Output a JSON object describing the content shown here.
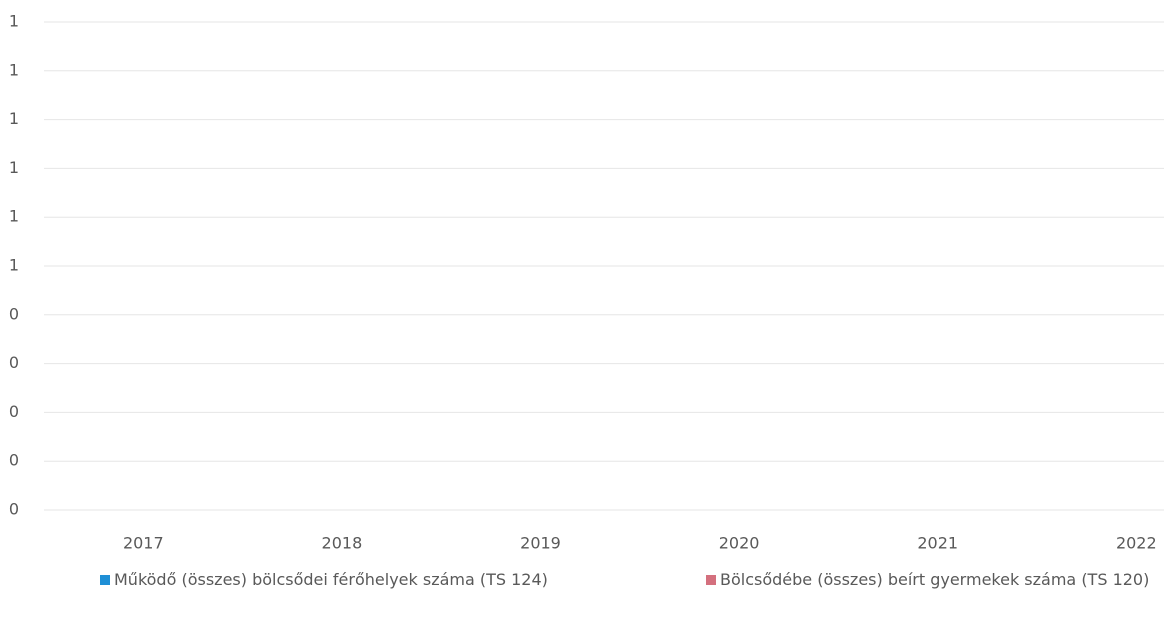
{
  "chart_data": {
    "type": "bar",
    "categories": [
      "2017",
      "2018",
      "2019",
      "2020",
      "2021",
      "2022"
    ],
    "series": [
      {
        "name": "Működő (összes) bölcsődei férőhelyek száma (TS 124)",
        "color": "#1f8fd6",
        "values": [
          0,
          0,
          0,
          0,
          0,
          0
        ]
      },
      {
        "name": "Bölcsődébe (összes) beírt gyermekek száma (TS 120)",
        "color": "#d4707e",
        "values": [
          0,
          0,
          0,
          0,
          0,
          0
        ]
      }
    ],
    "ylim": [
      0,
      1
    ],
    "yticks": [
      0,
      {
        "value": 0.1,
        "label": "0"
      },
      {
        "value": 0.2,
        "label": "0"
      },
      {
        "value": 0.3,
        "label": "0"
      },
      {
        "value": 0.4,
        "label": "0"
      },
      {
        "value": 0.5,
        "label": "1"
      },
      {
        "value": 0.6,
        "label": "1"
      },
      {
        "value": 0.7,
        "label": "1"
      },
      {
        "value": 0.8,
        "label": "1"
      },
      {
        "value": 0.9,
        "label": "1"
      },
      1
    ],
    "grid": true,
    "legend": "bottom"
  }
}
